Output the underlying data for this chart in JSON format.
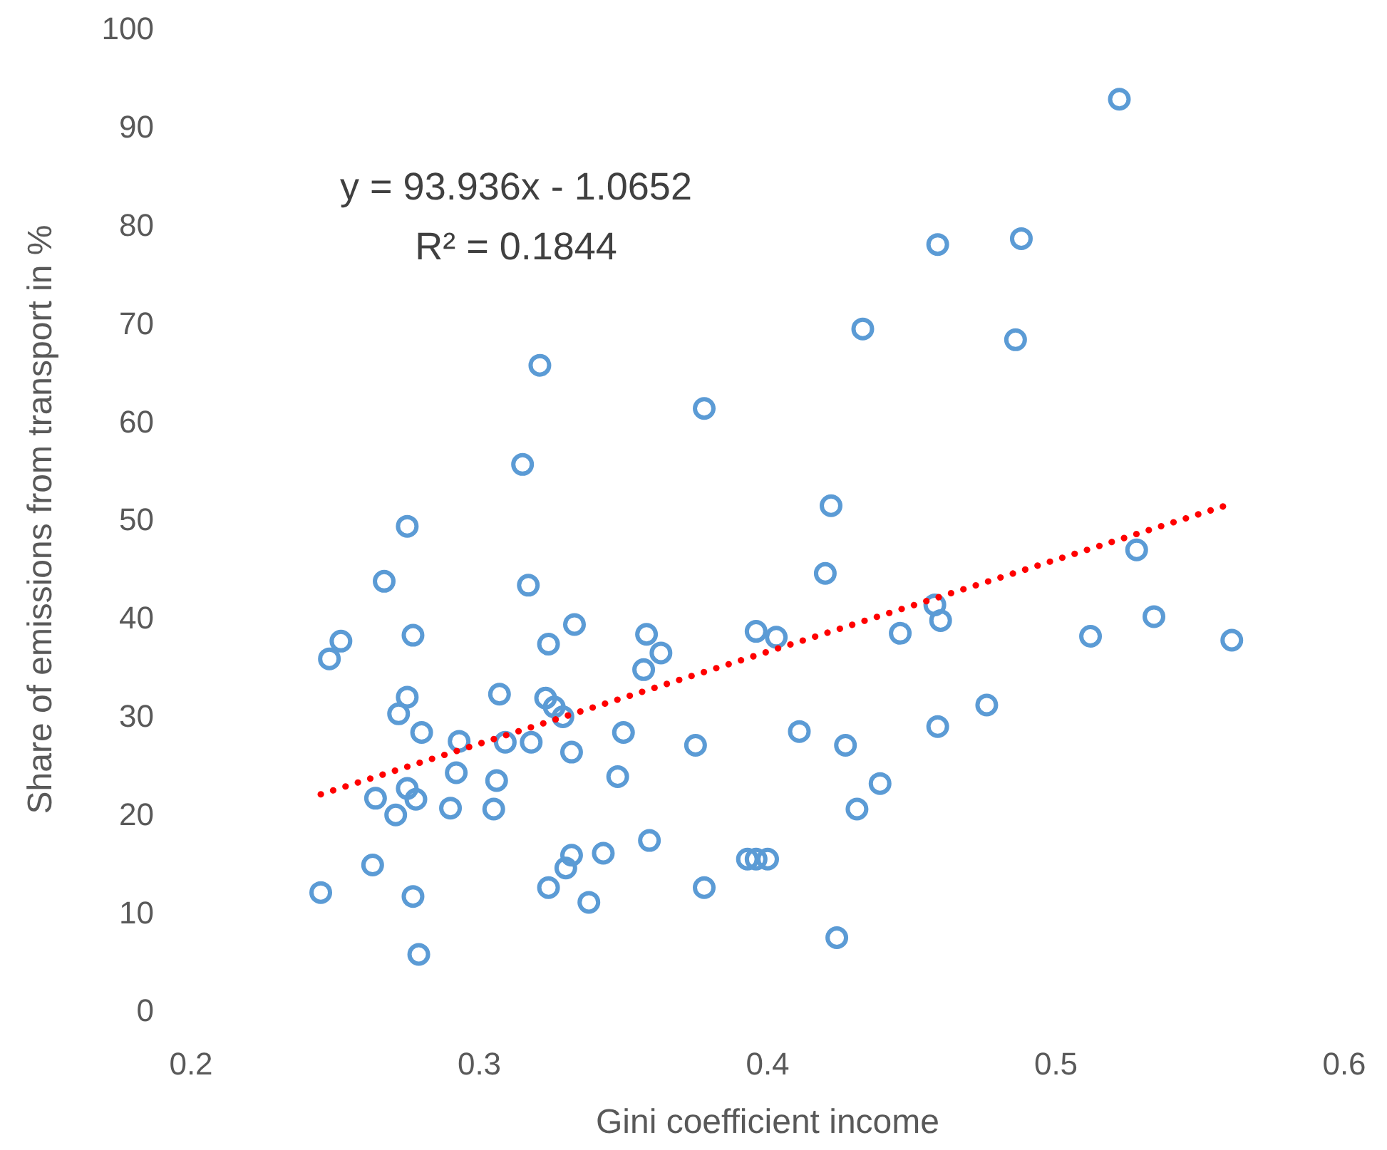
{
  "chart_data": {
    "type": "scatter",
    "xlabel": "Gini coefficient income",
    "ylabel": "Share of emissions from transport in %",
    "annotations": [
      "y = 93.936x - 1.0652",
      "R² = 0.1844"
    ],
    "xlim": [
      0.2,
      0.6
    ],
    "xticks": [
      0.2,
      0.3,
      0.4,
      0.5,
      0.6
    ],
    "ylim": [
      0,
      100
    ],
    "yticks": [
      0,
      10,
      20,
      30,
      40,
      50,
      60,
      70,
      80,
      90,
      100
    ],
    "grid": false,
    "series": [
      {
        "color": "#5b9bd5",
        "marker": "circle",
        "x": [
          0.245,
          0.248,
          0.252,
          0.264,
          0.263,
          0.267,
          0.271,
          0.272,
          0.275,
          0.275,
          0.275,
          0.278,
          0.277,
          0.277,
          0.28,
          0.279,
          0.29,
          0.292,
          0.293,
          0.305,
          0.306,
          0.307,
          0.309,
          0.315,
          0.317,
          0.318,
          0.321,
          0.323,
          0.324,
          0.324,
          0.326,
          0.329,
          0.33,
          0.332,
          0.332,
          0.333,
          0.338,
          0.343,
          0.348,
          0.35,
          0.357,
          0.358,
          0.363,
          0.359,
          0.375,
          0.378,
          0.378,
          0.393,
          0.396,
          0.4,
          0.396,
          0.403,
          0.411,
          0.42,
          0.422,
          0.424,
          0.427,
          0.431,
          0.433,
          0.439,
          0.446,
          0.458,
          0.459,
          0.459,
          0.46,
          0.476,
          0.486,
          0.488,
          0.512,
          0.522,
          0.528,
          0.534,
          0.561
        ],
        "values": [
          12.0,
          35.8,
          37.6,
          21.6,
          14.8,
          43.7,
          19.9,
          30.2,
          49.3,
          31.9,
          22.6,
          21.5,
          38.2,
          11.6,
          28.3,
          5.7,
          20.6,
          24.2,
          27.4,
          20.5,
          23.4,
          32.2,
          27.3,
          55.6,
          43.3,
          27.3,
          65.7,
          31.8,
          37.3,
          12.5,
          30.9,
          29.9,
          14.5,
          15.8,
          26.3,
          39.3,
          11.0,
          16.0,
          23.8,
          28.3,
          34.7,
          38.3,
          36.4,
          17.3,
          27.0,
          61.3,
          12.5,
          15.4,
          15.4,
          15.4,
          38.6,
          38.0,
          28.4,
          44.5,
          51.4,
          7.4,
          27.0,
          20.5,
          69.4,
          23.1,
          38.4,
          41.3,
          78.0,
          28.9,
          39.7,
          31.1,
          68.3,
          78.6,
          38.1,
          92.8,
          46.9,
          40.1,
          37.7
        ]
      },
      {
        "type": "line",
        "color": "#ff0000",
        "marker": "none",
        "line_style": "dotted",
        "x": [
          0.245,
          0.562
        ],
        "values": [
          22.0,
          51.7
        ]
      }
    ]
  }
}
